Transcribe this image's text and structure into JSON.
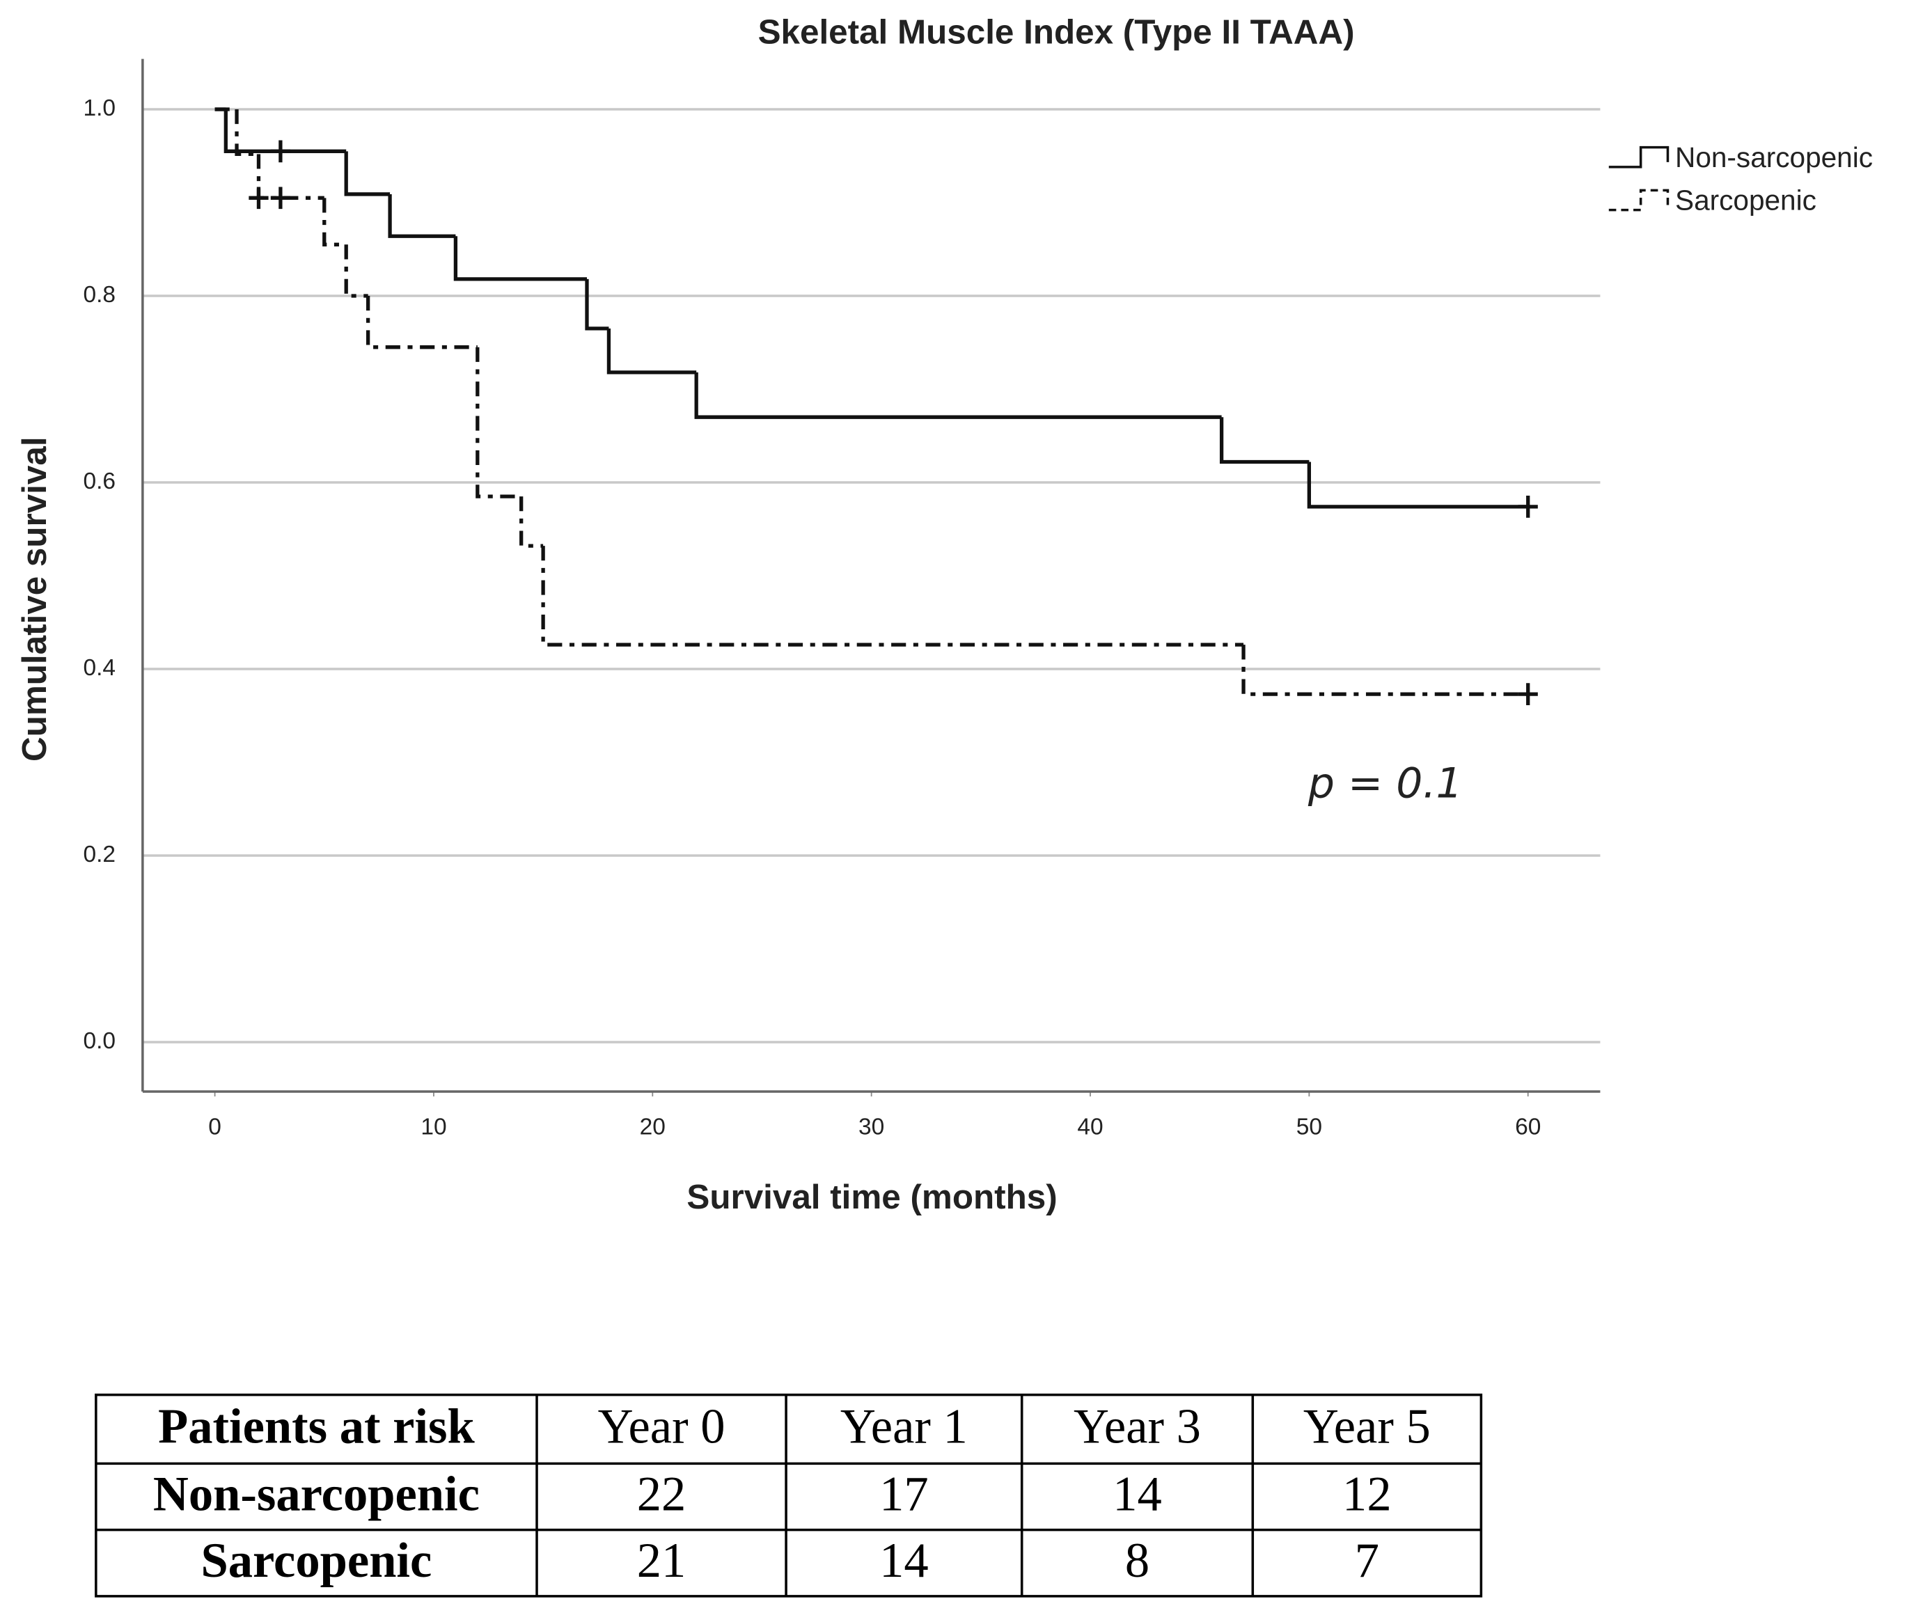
{
  "chart_data": {
    "type": "step",
    "title": "Skeletal Muscle Index (Type II TAAA)",
    "x_label": "Survival time (months)",
    "y_label": "Cumulative survival",
    "annotation": "p = 0.1",
    "xlim": [
      -3.3,
      63.3
    ],
    "ylim": [
      -0.053,
      1.054
    ],
    "xticks": [
      0,
      10,
      20,
      30,
      40,
      50,
      60
    ],
    "yticks": [
      {
        "value": 0,
        "label": "0.0"
      },
      0.2,
      0.4,
      0.6,
      0.8,
      {
        "value": 1,
        "label": "1.0"
      }
    ],
    "grid": true,
    "legend": "upper right",
    "series": [
      {
        "name": "Non-sarcopenic",
        "color": "#111111",
        "dash": "solid",
        "x": [
          0,
          0.5,
          6,
          8,
          11,
          17,
          18,
          22,
          46,
          50,
          60
        ],
        "values": [
          1.0,
          0.955,
          0.909,
          0.864,
          0.818,
          0.765,
          0.718,
          0.67,
          0.622,
          0.574,
          0.574
        ],
        "censor_x": [
          3,
          60
        ],
        "censor_values": [
          0.955,
          0.574
        ]
      },
      {
        "name": "Sarcopenic",
        "color": "#111111",
        "dash": "dashdot",
        "x": [
          0,
          1,
          2,
          5,
          6,
          7,
          12,
          14,
          15,
          47,
          60
        ],
        "values": [
          1.0,
          0.952,
          0.905,
          0.855,
          0.8,
          0.745,
          0.585,
          0.532,
          0.426,
          0.373,
          0.373
        ],
        "censor_x": [
          2,
          3,
          60
        ],
        "censor_values": [
          0.905,
          0.905,
          0.373
        ]
      }
    ]
  },
  "table": {
    "header": [
      "Patients at risk",
      "Year 0",
      "Year 1",
      "Year 3",
      "Year 5"
    ],
    "rows": [
      [
        "Non-sarcopenic",
        22,
        17,
        14,
        12
      ],
      [
        "Sarcopenic",
        21,
        14,
        8,
        7
      ]
    ]
  }
}
